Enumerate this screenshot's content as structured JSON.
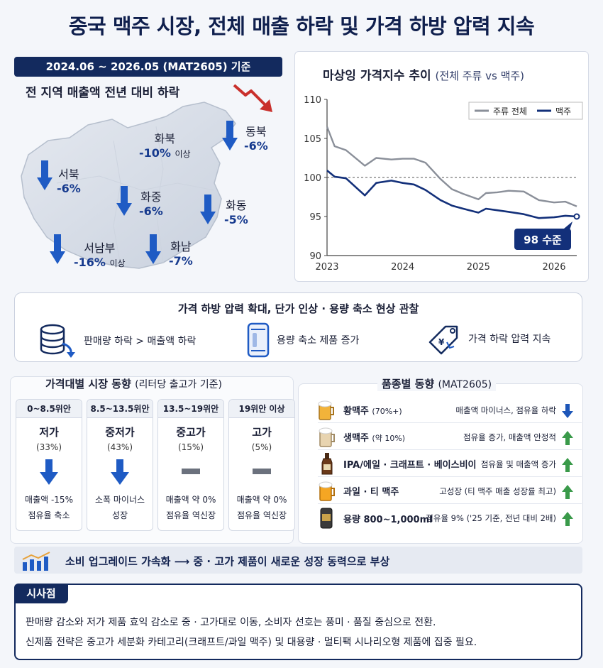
{
  "title": "중국 맥주 시장, 전체 매출 하락 및 가격 하방 압력 지속",
  "period": "2024.06 ~ 2026.05 (MAT2605) 기준",
  "map": {
    "title": "전 지역 매출액 전년 대비 하락",
    "regions": [
      {
        "name": "화북",
        "value": "-10%",
        "note": "이상"
      },
      {
        "name": "동북",
        "value": "-6%",
        "note": ""
      },
      {
        "name": "서북",
        "value": "-6%",
        "note": ""
      },
      {
        "name": "화중",
        "value": "-6%",
        "note": ""
      },
      {
        "name": "화동",
        "value": "-5%",
        "note": ""
      },
      {
        "name": "서남부",
        "value": "-16%",
        "note": "이상"
      },
      {
        "name": "화남",
        "value": "-7%",
        "note": ""
      }
    ]
  },
  "chart_data": {
    "type": "line",
    "title": "마상잉 가격지수 추이",
    "subtitle": "(전체 주류 vs 맥주)",
    "xlabel": "",
    "ylabel": "",
    "ylim": [
      90,
      110
    ],
    "yticks": [
      "90",
      "95",
      "100",
      "105",
      "110"
    ],
    "xticks": [
      "2023",
      "2024",
      "2025",
      "2026"
    ],
    "xlim": [
      2023,
      2026.3
    ],
    "reference_line": 100,
    "legend_position": "top-right",
    "callout": "98 수준",
    "series": [
      {
        "name": "주류 전체",
        "color": "#8a8f99",
        "x": [
          2023.0,
          2023.1,
          2023.25,
          2023.5,
          2023.65,
          2023.85,
          2024.0,
          2024.15,
          2024.3,
          2024.5,
          2024.65,
          2024.8,
          2025.0,
          2025.1,
          2025.25,
          2025.4,
          2025.6,
          2025.8,
          2026.0,
          2026.15,
          2026.3
        ],
        "y": [
          106.5,
          104.0,
          103.5,
          101.5,
          102.5,
          102.3,
          102.4,
          102.4,
          101.9,
          99.8,
          98.5,
          97.9,
          97.2,
          98.0,
          98.1,
          98.3,
          98.2,
          97.1,
          96.8,
          96.9,
          96.3
        ]
      },
      {
        "name": "맥주",
        "color": "#13307a",
        "x": [
          2023.0,
          2023.1,
          2023.25,
          2023.5,
          2023.65,
          2023.85,
          2024.0,
          2024.15,
          2024.3,
          2024.5,
          2024.65,
          2024.8,
          2025.0,
          2025.1,
          2025.25,
          2025.4,
          2025.6,
          2025.8,
          2026.0,
          2026.15,
          2026.3
        ],
        "y": [
          100.9,
          100.1,
          99.9,
          97.7,
          99.3,
          99.6,
          99.3,
          99.1,
          98.4,
          97.1,
          96.4,
          96.0,
          95.5,
          96.0,
          95.8,
          95.6,
          95.3,
          94.8,
          94.9,
          95.1,
          95.0
        ]
      }
    ]
  },
  "observations": {
    "title": "가격 하방 압력 확대, 단가 인상 · 용량 축소 현상 관찰",
    "items": [
      "판매량 하락 > 매출액 하락",
      "용량 축소 제품 증가",
      "가격 하락 압력 지속"
    ]
  },
  "tiers": {
    "title": "가격대별 시장 동향",
    "subtitle": "(리터당 출고가 기준)",
    "items": [
      {
        "range": "0~8.5위안",
        "level": "저가",
        "share": "(33%)",
        "trend": "down",
        "d1": "매출액 -15%",
        "d2": "점유율 축소"
      },
      {
        "range": "8.5~13.5위안",
        "level": "중저가",
        "share": "(43%)",
        "trend": "down",
        "d1": "소폭 마이너스",
        "d2": "성장"
      },
      {
        "range": "13.5~19위안",
        "level": "중고가",
        "share": "(15%)",
        "trend": "flat",
        "d1": "매출액 약 0%",
        "d2": "점유율 역신장"
      },
      {
        "range": "19위안 이상",
        "level": "고가",
        "share": "(5%)",
        "trend": "flat",
        "d1": "매출액 약 0%",
        "d2": "점유율 역신장"
      }
    ]
  },
  "products": {
    "title": "품종별 동향",
    "subtitle": "(MAT2605)",
    "items": [
      {
        "name": "황맥주",
        "note": "(70%+)",
        "desc": "매출액 마이너스, 점유율 하락",
        "trend": "down"
      },
      {
        "name": "생맥주",
        "note": "(약 10%)",
        "desc": "점유율 증가, 매출액 안정적",
        "trend": "up"
      },
      {
        "name": "IPA/에일 · 크래프트 · 베이스비이",
        "note": "",
        "desc": "점유율 및 매출액 증가",
        "trend": "up"
      },
      {
        "name": "과일 · 티 맥주",
        "note": "",
        "desc": "고성장 (티 맥주 매출 성장률 최고)",
        "trend": "up"
      },
      {
        "name": "용량 800~1,000ml",
        "note": "",
        "desc": "점유율 9% ('25 기준, 전년 대비 2배)",
        "trend": "up"
      }
    ]
  },
  "banner": "소비 업그레이드 가속화 ⟶ 중 · 고가 제품이 새로운 성장 동력으로 부상",
  "implications": {
    "tag": "시사점",
    "line1": "판매량 감소와 저가 제품 효익 감소로 중 · 고가대로 이동, 소비자 선호는 풍미 · 품질 중심으로 전환.",
    "line2": "신제품 전략은 중고가 세분화 카테고리(크래프트/과일 맥주) 및 대용량 · 멀티팩 시나리오형 제품에 집중 필요."
  },
  "colors": {
    "navy": "#132a5e",
    "arrow_blue": "#1f5bc4",
    "up_green": "#3a9a4a",
    "down_blue": "#1d56b8"
  }
}
